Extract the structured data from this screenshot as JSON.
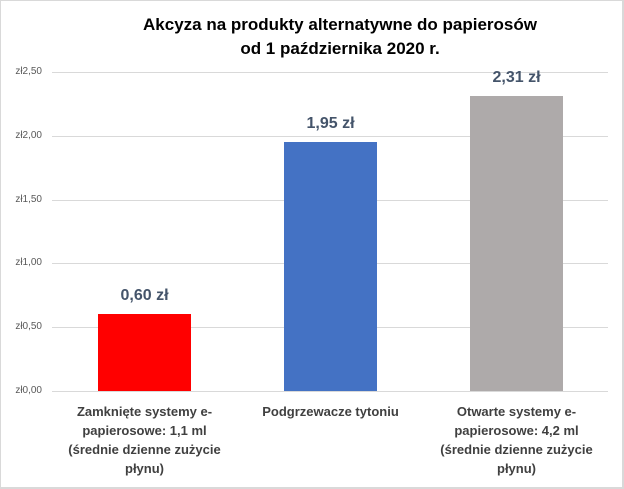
{
  "chart_data": {
    "type": "bar",
    "title": "Akcyza na produkty alternatywne do papierosów od 1 października 2020 r.",
    "title_lines": [
      "Akcyza na produkty alternatywne do papierosów",
      "od 1 października 2020 r."
    ],
    "categories": [
      "Zamknięte systemy e-papierosowe: 1,1 ml (średnie dzienne zużycie płynu)",
      "Podgrzewacze tytoniu",
      "Otwarte systemy e-papierosowe: 4,2 ml (średnie dzienne zużycie płynu)"
    ],
    "values": [
      0.6,
      1.95,
      2.31
    ],
    "data_labels": [
      "0,60 zł",
      "1,95 zł",
      "2,31 zł"
    ],
    "colors": [
      "#ff0000",
      "#4472c4",
      "#aeaaaa"
    ],
    "xlabel": "",
    "ylabel": "",
    "ylim": [
      0,
      2.5
    ],
    "yticks": [
      0,
      0.5,
      1.0,
      1.5,
      2.0,
      2.5
    ],
    "ytick_labels": [
      "zł0,00",
      "zł0,50",
      "zł1,00",
      "zł1,50",
      "zł2,00",
      "zł2,50"
    ],
    "grid": true,
    "legend": "none"
  },
  "categories_display": [
    [
      "Zamknięte systemy e-",
      "papierosowe: 1,1 ml",
      "(średnie dzienne zużycie",
      "płynu)"
    ],
    [
      "Podgrzewacze tytoniu"
    ],
    [
      "Otwarte systemy e-",
      "papierosowe: 4,2 ml",
      "(średnie dzienne zużycie",
      "płynu)"
    ]
  ]
}
